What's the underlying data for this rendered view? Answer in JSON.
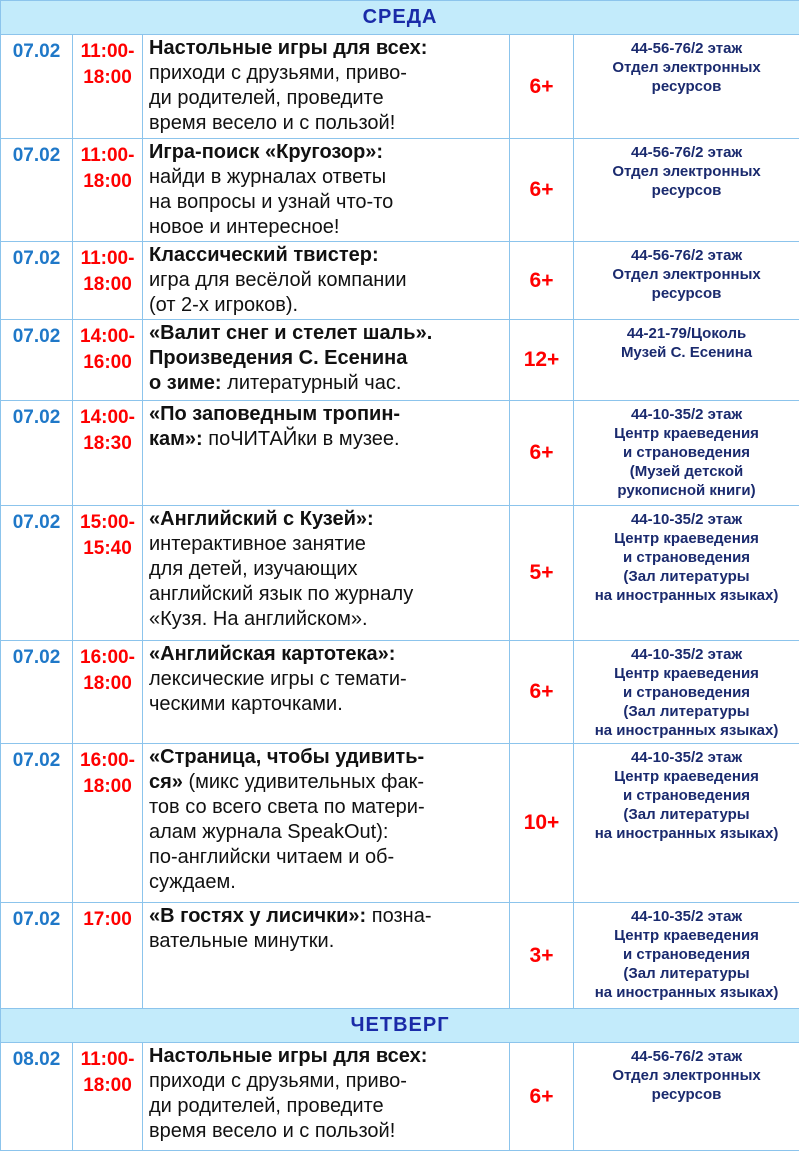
{
  "sections": [
    {
      "day": "СРЕДА",
      "rows": [
        {
          "date": "07.02",
          "time": "11:00-\n18:00",
          "title": "Настольные игры для всех:",
          "text": "\nприходи с друзьями, приво-\nди родителей, проведите\nвремя весело и с пользой!",
          "age": "6+",
          "place": "44-56-76/2 этаж\nОтдел электронных\nресурсов"
        },
        {
          "date": "07.02",
          "time": "11:00-\n18:00",
          "title": " Игра-поиск «Кругозор»:",
          "text": "\n найди в журналах ответы\n на вопросы и узнай что-то\n новое и интересное!",
          "age": "6+",
          "place": "44-56-76/2 этаж\nОтдел электронных\nресурсов"
        },
        {
          "date": "07.02",
          "time": "11:00-\n18:00",
          "title": "Классический твистер:",
          "text": "\nигра для весёлой компании\n(от 2-х игроков).",
          "age": "6+",
          "place": "44-56-76/2 этаж\nОтдел электронных\nресурсов"
        },
        {
          "date": "07.02",
          "time": "14:00-\n16:00",
          "title": "«Валит снег и стелет шаль».\nПроизведения С. Есенина\nо зиме:",
          "text": " литературный час.",
          "age": "12+",
          "place": "44-21-79/Цоколь\nМузей С. Есенина"
        },
        {
          "date": "07.02",
          "time": "14:00-\n18:30",
          "title": "«По заповедным тропин-\nкам»:",
          "text": " поЧИТАЙки в музее.",
          "age": "6+",
          "place": "44-10-35/2 этаж\nЦентр краеведения\nи страноведения\n(Музей детской\nрукописной книги)"
        },
        {
          "date": "07.02",
          "time": "15:00-\n15:40",
          "title": "«Английский с Кузей»:",
          "text": "\nинтерактивное занятие\nдля детей, изучающих\nанглийский язык по журналу\n«Кузя. На английском».",
          "age": "5+",
          "place": "44-10-35/2 этаж\nЦентр краеведения\nи страноведения\n(Зал литературы\nна иностранных языках)"
        },
        {
          "date": "07.02",
          "time": "16:00-\n18:00",
          "title": "«Английская картотека»:",
          "text": "\nлексические игры с темати-\nческими карточками.",
          "age": "6+",
          "place": "44-10-35/2 этаж\nЦентр краеведения\nи страноведения\n(Зал литературы\nна иностранных языках)"
        },
        {
          "date": "07.02",
          "time": "16:00-\n18:00",
          "title": "«Страница, чтобы удивить-\nся»",
          "text": " (микс удивительных фак-\nтов со всего света по матери-\nалам журнала SpeakOut):\nпо-английски читаем и об-\nсуждаем.",
          "age": "10+",
          "place": "44-10-35/2 этаж\nЦентр краеведения\nи страноведения\n(Зал литературы\nна иностранных языках)"
        },
        {
          "date": "07.02",
          "time": "17:00",
          "title": "«В гостях у лисички»:",
          "text": " позна-\nвательные минутки.",
          "age": "3+",
          "place": "44-10-35/2 этаж\nЦентр краеведения\nи страноведения\n(Зал литературы\nна иностранных языках)"
        }
      ]
    },
    {
      "day": "ЧЕТВЕРГ",
      "rows": [
        {
          "date": "08.02",
          "time": "11:00-\n18:00",
          "title": "Настольные игры для всех:",
          "text": "\nприходи с друзьями, приво-\nди родителей, проведите\nвремя весело и с пользой!",
          "age": "6+",
          "place": "44-56-76/2 этаж\nОтдел электронных\nресурсов"
        }
      ]
    }
  ]
}
